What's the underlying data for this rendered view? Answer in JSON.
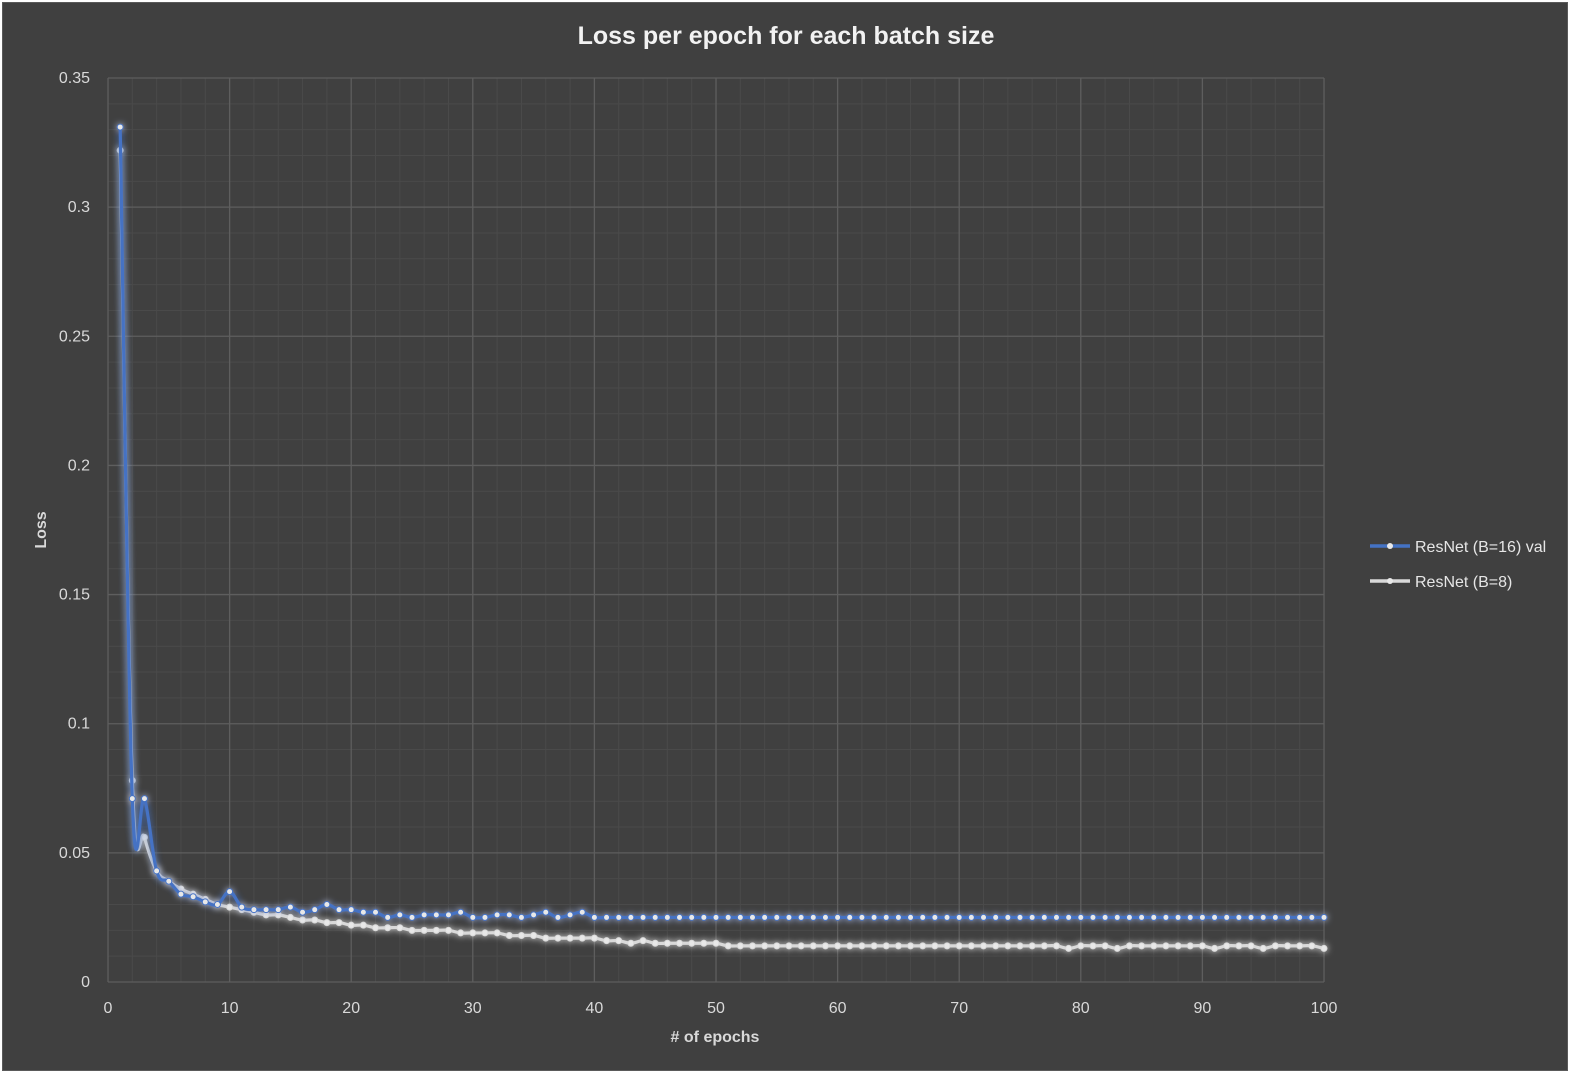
{
  "chart_data": {
    "type": "line",
    "title": "Loss per epoch for each batch size",
    "xlabel": "# of epochs",
    "ylabel": "Loss",
    "xlim": [
      0,
      100
    ],
    "ylim": [
      0,
      0.35
    ],
    "x_ticks": [
      "0",
      "10",
      "20",
      "30",
      "40",
      "50",
      "60",
      "70",
      "80",
      "90",
      "100"
    ],
    "y_ticks": [
      "0",
      "0.05",
      "0.1",
      "0.15",
      "0.2",
      "0.25",
      "0.3",
      "0.35"
    ],
    "grid": true,
    "minor_grid": true,
    "legend_position": "right",
    "x": [
      1,
      2,
      3,
      4,
      5,
      6,
      7,
      8,
      9,
      10,
      11,
      12,
      13,
      14,
      15,
      16,
      17,
      18,
      19,
      20,
      21,
      22,
      23,
      24,
      25,
      26,
      27,
      28,
      29,
      30,
      31,
      32,
      33,
      34,
      35,
      36,
      37,
      38,
      39,
      40,
      41,
      42,
      43,
      44,
      45,
      46,
      47,
      48,
      49,
      50,
      51,
      52,
      53,
      54,
      55,
      56,
      57,
      58,
      59,
      60,
      61,
      62,
      63,
      64,
      65,
      66,
      67,
      68,
      69,
      70,
      71,
      72,
      73,
      74,
      75,
      76,
      77,
      78,
      79,
      80,
      81,
      82,
      83,
      84,
      85,
      86,
      87,
      88,
      89,
      90,
      91,
      92,
      93,
      94,
      95,
      96,
      97,
      98,
      99,
      100
    ],
    "series": [
      {
        "name": "ResNet (B=16) val",
        "color": "#4472c4",
        "values": [
          0.331,
          0.071,
          0.071,
          0.043,
          0.039,
          0.034,
          0.033,
          0.031,
          0.03,
          0.035,
          0.029,
          0.028,
          0.028,
          0.028,
          0.029,
          0.027,
          0.028,
          0.03,
          0.028,
          0.028,
          0.027,
          0.027,
          0.025,
          0.026,
          0.025,
          0.026,
          0.026,
          0.026,
          0.027,
          0.025,
          0.025,
          0.026,
          0.026,
          0.025,
          0.026,
          0.027,
          0.025,
          0.026,
          0.027,
          0.025,
          0.025,
          0.025,
          0.025,
          0.025,
          0.025,
          0.025,
          0.025,
          0.025,
          0.025,
          0.025,
          0.025,
          0.025,
          0.025,
          0.025,
          0.025,
          0.025,
          0.025,
          0.025,
          0.025,
          0.025,
          0.025,
          0.025,
          0.025,
          0.025,
          0.025,
          0.025,
          0.025,
          0.025,
          0.025,
          0.025,
          0.025,
          0.025,
          0.025,
          0.025,
          0.025,
          0.025,
          0.025,
          0.025,
          0.025,
          0.025,
          0.025,
          0.025,
          0.025,
          0.025,
          0.025,
          0.025,
          0.025,
          0.025,
          0.025,
          0.025,
          0.025,
          0.025,
          0.025,
          0.025,
          0.025,
          0.025,
          0.025,
          0.025,
          0.025,
          0.025
        ]
      },
      {
        "name": "ResNet (B=8)",
        "color": "#d9d9d9",
        "values": [
          0.322,
          0.078,
          0.056,
          0.043,
          0.039,
          0.036,
          0.034,
          0.032,
          0.03,
          0.029,
          0.028,
          0.027,
          0.026,
          0.026,
          0.025,
          0.024,
          0.024,
          0.023,
          0.023,
          0.022,
          0.022,
          0.021,
          0.021,
          0.021,
          0.02,
          0.02,
          0.02,
          0.02,
          0.019,
          0.019,
          0.019,
          0.019,
          0.018,
          0.018,
          0.018,
          0.017,
          0.017,
          0.017,
          0.017,
          0.017,
          0.016,
          0.016,
          0.015,
          0.016,
          0.015,
          0.015,
          0.015,
          0.015,
          0.015,
          0.015,
          0.014,
          0.014,
          0.014,
          0.014,
          0.014,
          0.014,
          0.014,
          0.014,
          0.014,
          0.014,
          0.014,
          0.014,
          0.014,
          0.014,
          0.014,
          0.014,
          0.014,
          0.014,
          0.014,
          0.014,
          0.014,
          0.014,
          0.014,
          0.014,
          0.014,
          0.014,
          0.014,
          0.014,
          0.013,
          0.014,
          0.014,
          0.014,
          0.013,
          0.014,
          0.014,
          0.014,
          0.014,
          0.014,
          0.014,
          0.014,
          0.013,
          0.014,
          0.014,
          0.014,
          0.013,
          0.014,
          0.014,
          0.014,
          0.014,
          0.013
        ]
      }
    ]
  }
}
